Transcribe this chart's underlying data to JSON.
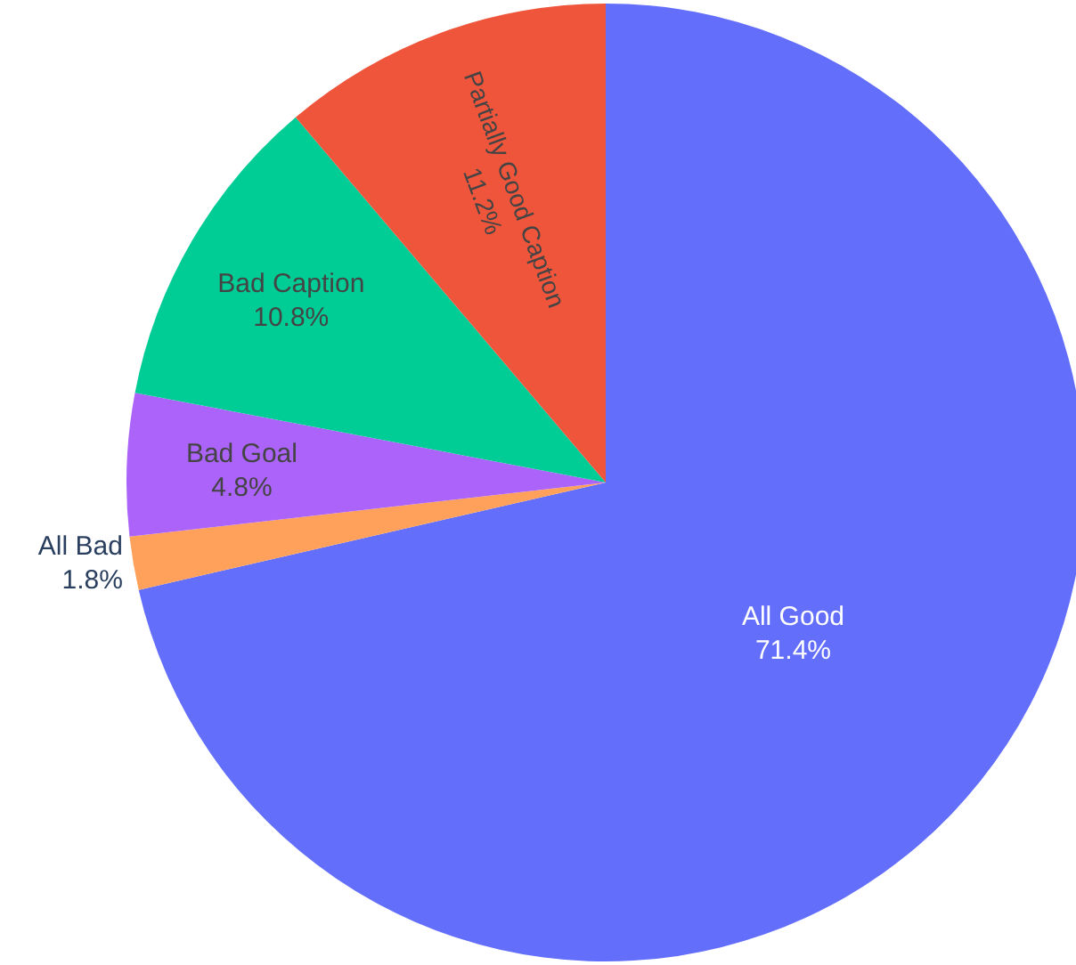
{
  "chart_data": {
    "type": "pie",
    "categories": [
      "All Good",
      "All Bad",
      "Bad Goal",
      "Bad Caption",
      "Partially Good Caption"
    ],
    "values": [
      71.4,
      1.8,
      4.8,
      10.8,
      11.2
    ],
    "value_labels": [
      "71.4%",
      "1.8%",
      "4.8%",
      "10.8%",
      "11.2%"
    ],
    "colors": [
      "#636efa",
      "#ffa15a",
      "#ab63fa",
      "#00cc96",
      "#ef553b"
    ]
  }
}
